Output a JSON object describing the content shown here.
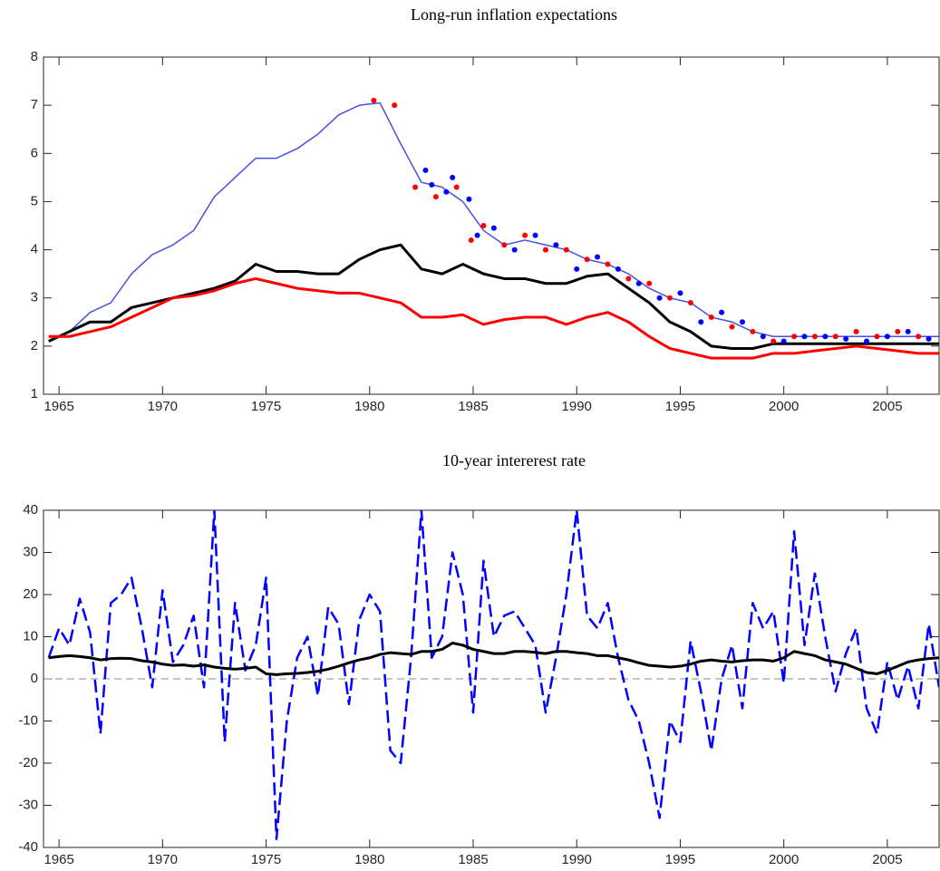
{
  "chart_data": [
    {
      "type": "line",
      "title": "Long-run inflation expectations",
      "x": [
        1964.5,
        1965.5,
        1966.5,
        1967.5,
        1968.5,
        1969.5,
        1970.5,
        1971.5,
        1972.5,
        1973.5,
        1974.5,
        1975.5,
        1976.5,
        1977.5,
        1978.5,
        1979.5,
        1980.5,
        1981.5,
        1982.5,
        1983.5,
        1984.5,
        1985.5,
        1986.5,
        1987.5,
        1988.5,
        1989.5,
        1990.5,
        1991.5,
        1992.5,
        1993.5,
        1994.5,
        1995.5,
        1996.5,
        1997.5,
        1998.5,
        1999.5,
        2000.5,
        2001.5,
        2002.5,
        2003.5,
        2004.5,
        2005.5,
        2006.5,
        2007.5
      ],
      "xlim": [
        1964.25,
        2007.5
      ],
      "xticks": [
        1965,
        1970,
        1975,
        1980,
        1985,
        1990,
        1995,
        2000,
        2005
      ],
      "ylim": [
        1,
        8
      ],
      "yticks": [
        1,
        2,
        3,
        4,
        5,
        6,
        7,
        8
      ],
      "series": [
        {
          "style": "line",
          "color": "#4a50e0",
          "width": 1.5,
          "values": [
            2.1,
            2.3,
            2.7,
            2.9,
            3.5,
            3.9,
            4.1,
            4.4,
            5.1,
            5.5,
            5.9,
            5.9,
            6.1,
            6.4,
            6.8,
            7.0,
            7.05,
            6.2,
            5.4,
            5.3,
            5.0,
            4.4,
            4.1,
            4.2,
            4.1,
            4.0,
            3.8,
            3.7,
            3.5,
            3.2,
            3.0,
            2.9,
            2.6,
            2.5,
            2.3,
            2.2,
            2.2,
            2.2,
            2.2,
            2.2,
            2.2,
            2.2,
            2.2,
            2.2
          ]
        },
        {
          "style": "line",
          "color": "#000000",
          "width": 3,
          "values": [
            2.1,
            2.3,
            2.5,
            2.5,
            2.8,
            2.9,
            3.0,
            3.1,
            3.2,
            3.35,
            3.7,
            3.55,
            3.55,
            3.5,
            3.5,
            3.8,
            4.0,
            4.1,
            3.6,
            3.5,
            3.7,
            3.5,
            3.4,
            3.4,
            3.3,
            3.3,
            3.45,
            3.5,
            3.2,
            2.9,
            2.5,
            2.3,
            2.0,
            1.95,
            1.95,
            2.05,
            2.05,
            2.05,
            2.05,
            2.05,
            2.05,
            2.05,
            2.05,
            2.05
          ]
        },
        {
          "style": "line",
          "color": "#ff0000",
          "width": 3,
          "values": [
            2.2,
            2.2,
            2.3,
            2.4,
            2.6,
            2.8,
            3.0,
            3.05,
            3.15,
            3.3,
            3.4,
            3.3,
            3.2,
            3.15,
            3.1,
            3.1,
            3.0,
            2.9,
            2.6,
            2.6,
            2.65,
            2.45,
            2.55,
            2.6,
            2.6,
            2.45,
            2.6,
            2.7,
            2.5,
            2.2,
            1.95,
            1.85,
            1.75,
            1.75,
            1.75,
            1.85,
            1.85,
            1.9,
            1.95,
            2.0,
            1.95,
            1.9,
            1.85,
            1.85
          ]
        },
        {
          "style": "markers",
          "color": "#ff0000",
          "x": [
            1980.2,
            1981.2,
            1982.2,
            1983.2,
            1984.2,
            1984.9,
            1985.5,
            1986.5,
            1987.5,
            1988.5,
            1989.5,
            1990.5,
            1991.5,
            1992.5,
            1993.5,
            1994.5,
            1995.5,
            1996.5,
            1997.5,
            1998.5,
            1999.5,
            2000.5,
            2001.5,
            2002.5,
            2003.5,
            2004.5,
            2005.5,
            2006.5
          ],
          "values": [
            7.1,
            7.0,
            5.3,
            5.1,
            5.3,
            4.2,
            4.5,
            4.1,
            4.3,
            4.0,
            4.0,
            3.8,
            3.7,
            3.4,
            3.3,
            3.0,
            2.9,
            2.6,
            2.4,
            2.3,
            2.1,
            2.2,
            2.2,
            2.2,
            2.3,
            2.2,
            2.3,
            2.2
          ]
        },
        {
          "style": "markers",
          "color": "#0000ff",
          "x": [
            1982.7,
            1983,
            1983.7,
            1984,
            1984.8,
            1985.2,
            1986,
            1987,
            1988,
            1989,
            1990,
            1991,
            1992,
            1993,
            1994,
            1995,
            1996,
            1997,
            1998,
            1999,
            2000,
            2001,
            2002,
            2003,
            2004,
            2005,
            2006,
            2007
          ],
          "values": [
            5.65,
            5.35,
            5.2,
            5.5,
            5.05,
            4.3,
            4.45,
            4.0,
            4.3,
            4.1,
            3.6,
            3.85,
            3.6,
            3.3,
            3.0,
            3.1,
            2.5,
            2.7,
            2.5,
            2.2,
            2.1,
            2.2,
            2.2,
            2.15,
            2.1,
            2.2,
            2.3,
            2.15
          ]
        }
      ]
    },
    {
      "type": "line",
      "title": "10-year intererest rate",
      "x": [
        1964.5,
        1965,
        1965.5,
        1966,
        1966.5,
        1967,
        1967.5,
        1968,
        1968.5,
        1969,
        1969.5,
        1970,
        1970.5,
        1971,
        1971.5,
        1972,
        1972.5,
        1973,
        1973.5,
        1974,
        1974.5,
        1975,
        1975.5,
        1976,
        1976.5,
        1977,
        1977.5,
        1978,
        1978.5,
        1979,
        1979.5,
        1980,
        1980.5,
        1981,
        1981.5,
        1982,
        1982.5,
        1983,
        1983.5,
        1984,
        1984.5,
        1985,
        1985.5,
        1986,
        1986.5,
        1987,
        1987.5,
        1988,
        1988.5,
        1989,
        1989.5,
        1990,
        1990.5,
        1991,
        1991.5,
        1992,
        1992.5,
        1993,
        1993.5,
        1994,
        1994.5,
        1995,
        1995.5,
        1996,
        1996.5,
        1997,
        1997.5,
        1998,
        1998.5,
        1999,
        1999.5,
        2000,
        2000.5,
        2001,
        2001.5,
        2002,
        2002.5,
        2003,
        2003.5,
        2004,
        2004.5,
        2005,
        2005.5,
        2006,
        2006.5,
        2007,
        2007.5
      ],
      "xlim": [
        1964.25,
        2007.5
      ],
      "xticks": [
        1965,
        1970,
        1975,
        1980,
        1985,
        1990,
        1995,
        2000,
        2005
      ],
      "ylim": [
        -40,
        40
      ],
      "yticks": [
        -40,
        -30,
        -20,
        -10,
        0,
        10,
        20,
        30,
        40
      ],
      "reference_line": 0,
      "series": [
        {
          "style": "dashed",
          "color": "#0000ff",
          "width": 2.5,
          "values": [
            5,
            12,
            8,
            19,
            11,
            -13,
            18,
            20,
            24,
            12,
            -2,
            21,
            4,
            8,
            15,
            -2,
            40,
            -15,
            18,
            2,
            8,
            24,
            -38,
            -10,
            5,
            10,
            -4,
            17,
            13,
            -6,
            14,
            20,
            16,
            -17,
            -20,
            5,
            40,
            5,
            10,
            30,
            20,
            -8,
            28,
            10,
            15,
            16,
            12,
            8,
            -8,
            5,
            20,
            40,
            15,
            12,
            18,
            5,
            -5,
            -10,
            -20,
            -33,
            -10,
            -15,
            9,
            -3,
            -17,
            0,
            8,
            -7,
            18,
            12,
            16,
            -1,
            35,
            8,
            25,
            10,
            -3,
            6,
            12,
            -7,
            -13,
            4,
            -5,
            3,
            -7,
            13,
            -2
          ]
        },
        {
          "style": "line",
          "color": "#000000",
          "width": 3,
          "values": [
            5,
            5.3,
            5.5,
            5.3,
            5,
            4.5,
            4.8,
            4.9,
            4.8,
            4.3,
            4.0,
            3.5,
            3.2,
            3.3,
            3.0,
            3.3,
            2.8,
            2.5,
            2.3,
            2.5,
            2.8,
            1.2,
            1.0,
            1.2,
            1.3,
            1.5,
            1.8,
            2.3,
            3.0,
            3.8,
            4.5,
            5.0,
            5.8,
            6.2,
            6.0,
            5.8,
            6.5,
            6.5,
            7.0,
            8.5,
            8.0,
            7.0,
            6.5,
            6.0,
            6.0,
            6.5,
            6.5,
            6.3,
            6.0,
            6.5,
            6.5,
            6.2,
            6.0,
            5.5,
            5.5,
            5.0,
            4.5,
            3.8,
            3.2,
            3.0,
            2.8,
            3.0,
            3.5,
            4.2,
            4.5,
            4.2,
            4.0,
            4.3,
            4.5,
            4.5,
            4.2,
            5.0,
            6.5,
            6.0,
            5.5,
            4.5,
            4.0,
            3.5,
            2.5,
            1.5,
            1.2,
            2.0,
            3.0,
            4.0,
            4.5,
            4.8,
            5.0
          ]
        }
      ]
    }
  ]
}
